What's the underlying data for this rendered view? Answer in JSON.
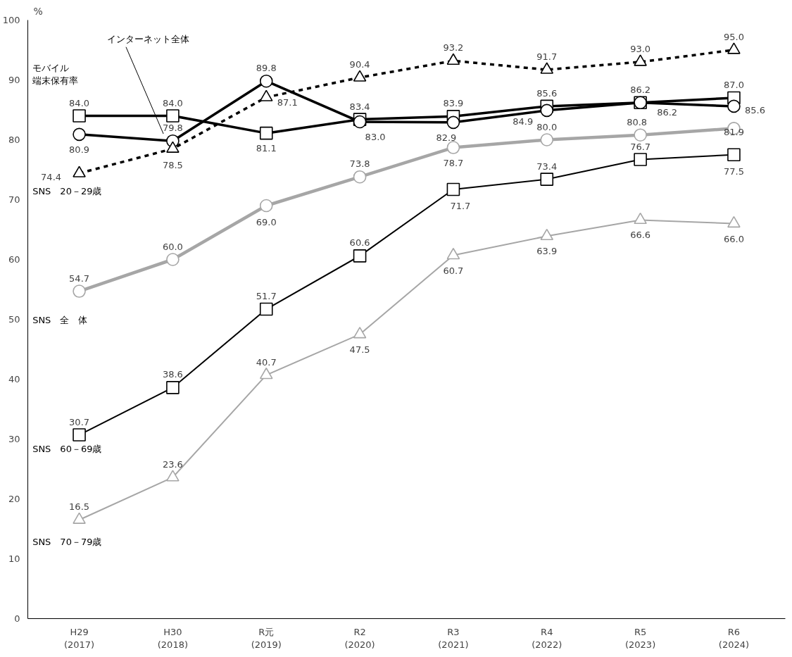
{
  "chart_data": {
    "type": "line",
    "ylabel": "%",
    "categories": [
      "H29\n(2017)",
      "H30\n(2018)",
      "R元\n(2019)",
      "R2\n(2020)",
      "R3\n(2021)",
      "R4\n(2022)",
      "R5\n(2023)",
      "R6\n(2024)"
    ],
    "ylim": [
      0,
      100
    ],
    "yticks": [
      0,
      10,
      20,
      30,
      40,
      50,
      60,
      70,
      80,
      90,
      100
    ],
    "grid": false,
    "legend": false,
    "series": [
      {
        "name": "モバイル端末保有率",
        "color": "#000000",
        "marker": "square",
        "line_style": "solid",
        "values": [
          84.0,
          84.0,
          81.1,
          83.4,
          83.9,
          85.6,
          86.2,
          87.0
        ],
        "value_labels": [
          "84.0",
          "84.0",
          "81.1",
          "83.4",
          "83.9",
          "85.6",
          "86.2",
          "87.0"
        ]
      },
      {
        "name": "インターネット全体",
        "color": "#000000",
        "marker": "circle",
        "line_style": "solid",
        "values": [
          80.9,
          79.8,
          89.8,
          83.0,
          82.9,
          84.9,
          86.2,
          85.6
        ],
        "value_labels": [
          "80.9",
          "79.8",
          "89.8",
          "83.0",
          "82.9",
          "84.9",
          "86.2",
          "85.6"
        ]
      },
      {
        "name": "SNS　20－29歳",
        "color": "#000000",
        "marker": "triangle",
        "line_style": "dashed",
        "values": [
          74.4,
          78.5,
          87.1,
          90.4,
          93.2,
          91.7,
          93.0,
          95.0
        ],
        "value_labels": [
          "74.4",
          "78.5",
          "87.1",
          "90.4",
          "93.2",
          "91.7",
          "93.0",
          "95.0"
        ]
      },
      {
        "name": "SNS　全　体",
        "color": "#a6a6a6",
        "marker": "circle",
        "line_style": "solid",
        "values": [
          54.7,
          60.0,
          69.0,
          73.8,
          78.7,
          80.0,
          80.8,
          81.9
        ],
        "value_labels": [
          "54.7",
          "60.0",
          "69.0",
          "73.8",
          "78.7",
          "80.0",
          "80.8",
          "81.9"
        ]
      },
      {
        "name": "SNS　60－69歳",
        "color": "#000000",
        "marker": "square",
        "line_style": "solid",
        "values": [
          30.7,
          38.6,
          51.7,
          60.6,
          71.7,
          73.4,
          76.7,
          77.5
        ],
        "value_labels": [
          "30.7",
          "38.6",
          "51.7",
          "60.6",
          "71.7",
          "73.4",
          "76.7",
          "77.5"
        ]
      },
      {
        "name": "SNS　70－79歳",
        "color": "#a6a6a6",
        "marker": "triangle",
        "line_style": "solid",
        "values": [
          16.5,
          23.6,
          40.7,
          47.5,
          60.7,
          63.9,
          66.6,
          66.0
        ],
        "value_labels": [
          "16.5",
          "23.6",
          "40.7",
          "47.5",
          "60.7",
          "63.9",
          "66.6",
          "66.0"
        ]
      }
    ]
  }
}
